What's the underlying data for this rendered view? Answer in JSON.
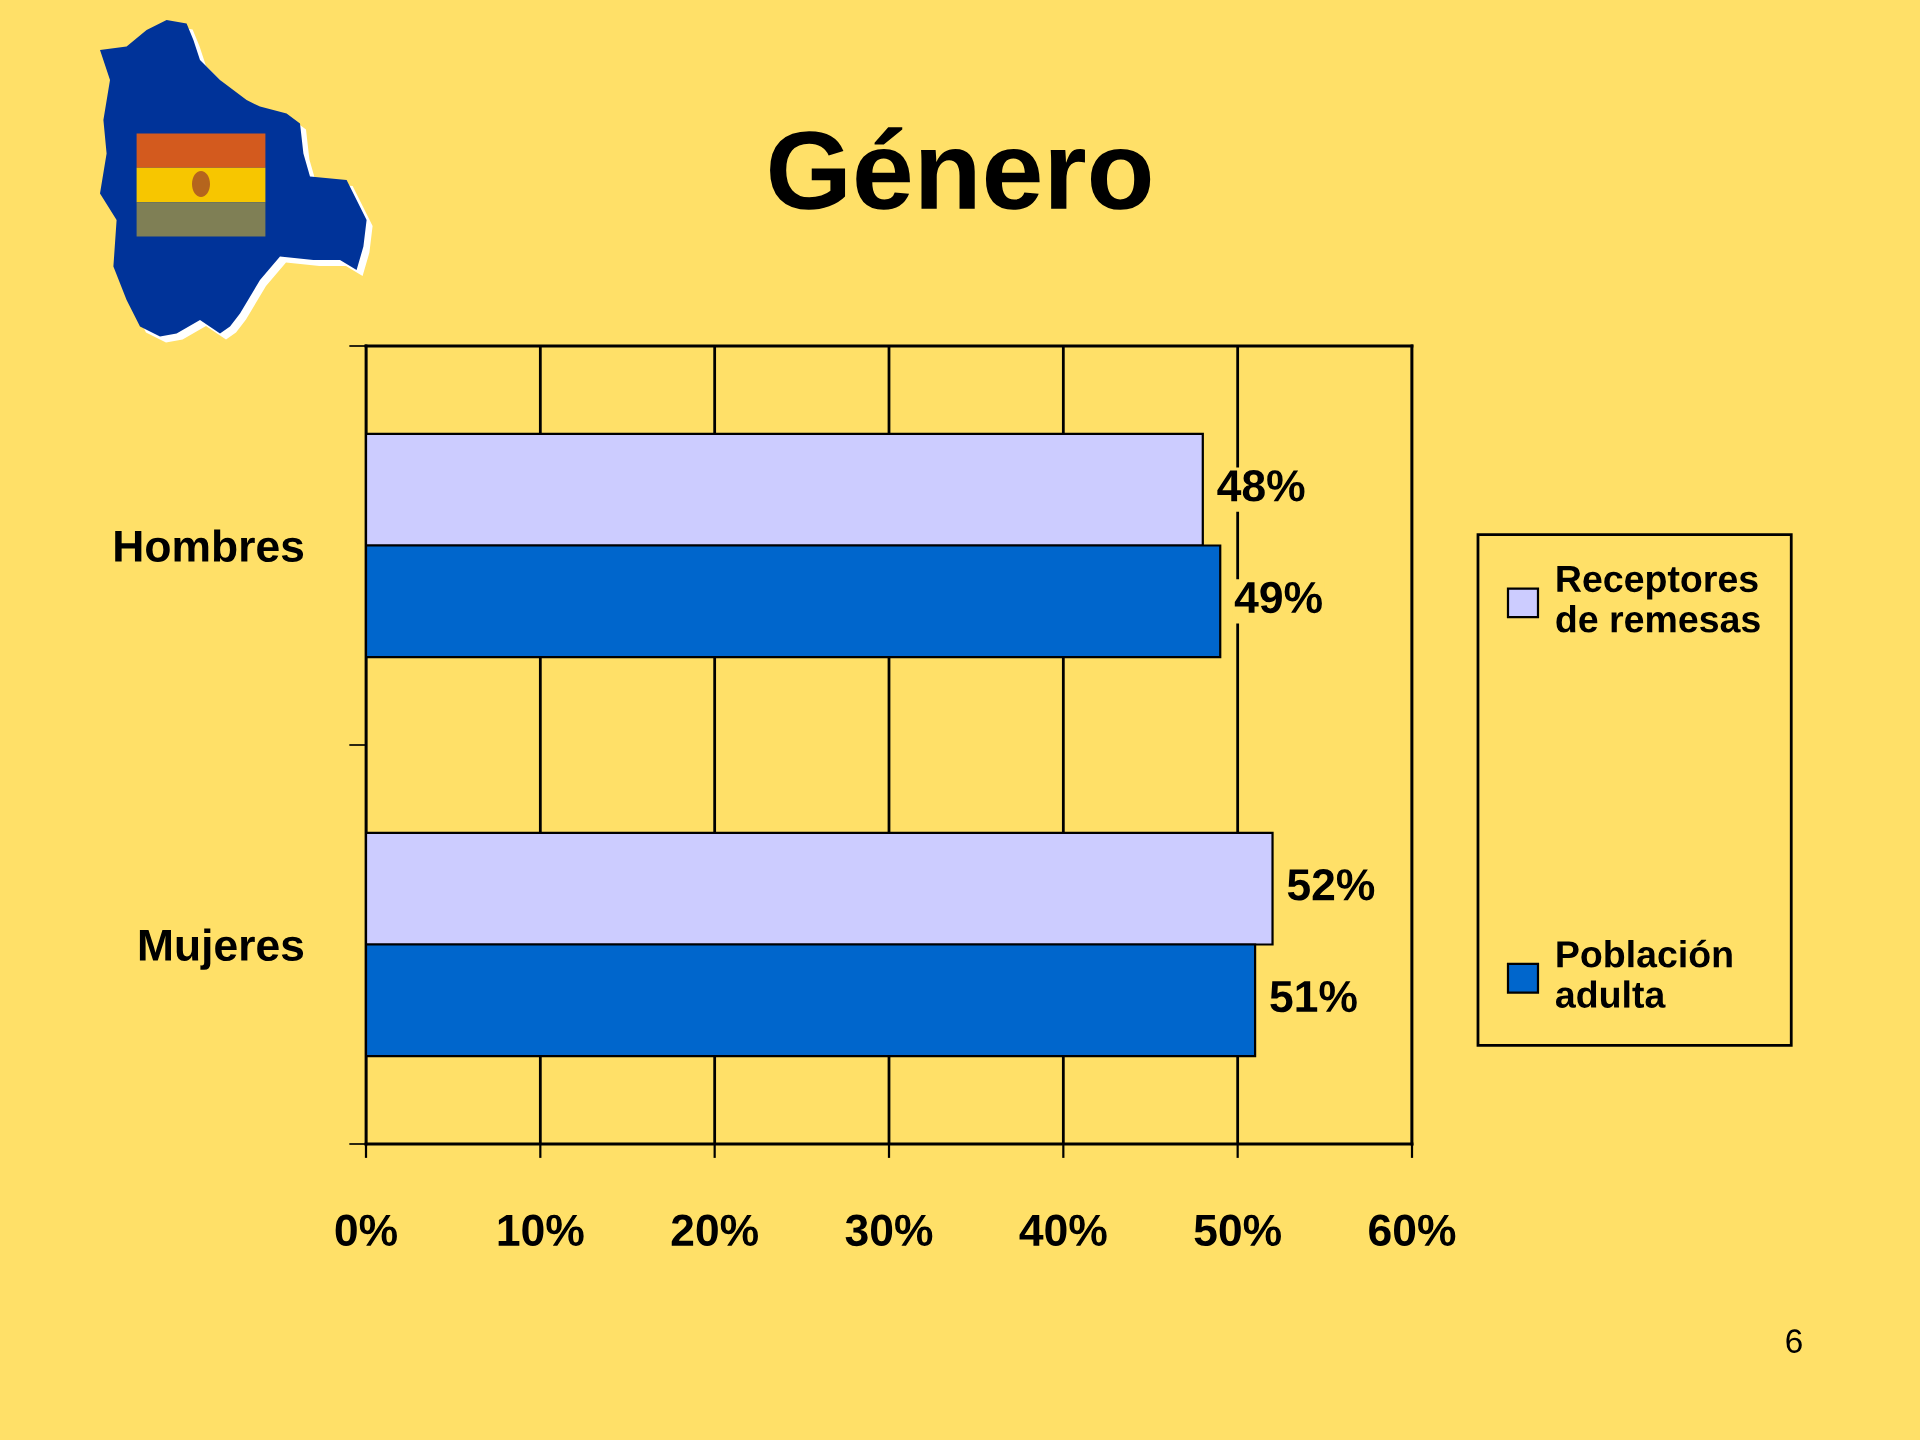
{
  "chart_data": {
    "type": "bar",
    "orientation": "horizontal",
    "title": "Género",
    "categories": [
      "Hombres",
      "Mujeres"
    ],
    "series": [
      {
        "name": "Receptores de remesas",
        "color": "#ccccff",
        "values": [
          48,
          52
        ],
        "value_labels": [
          "48%",
          "52%"
        ]
      },
      {
        "name": "Población adulta",
        "color": "#0066cc",
        "values": [
          49,
          51
        ],
        "value_labels": [
          "49%",
          "51%"
        ]
      }
    ],
    "xlim": [
      0,
      60
    ],
    "xticks": [
      {
        "value": 0,
        "label": "0%"
      },
      {
        "value": 10,
        "label": "10%"
      },
      {
        "value": 20,
        "label": "20%"
      },
      {
        "value": 30,
        "label": "30%"
      },
      {
        "value": 40,
        "label": "40%"
      },
      {
        "value": 50,
        "label": "50%"
      },
      {
        "value": 60,
        "label": "60%"
      }
    ],
    "grid": "x",
    "legend": "right",
    "annotations": [
      "6"
    ]
  }
}
